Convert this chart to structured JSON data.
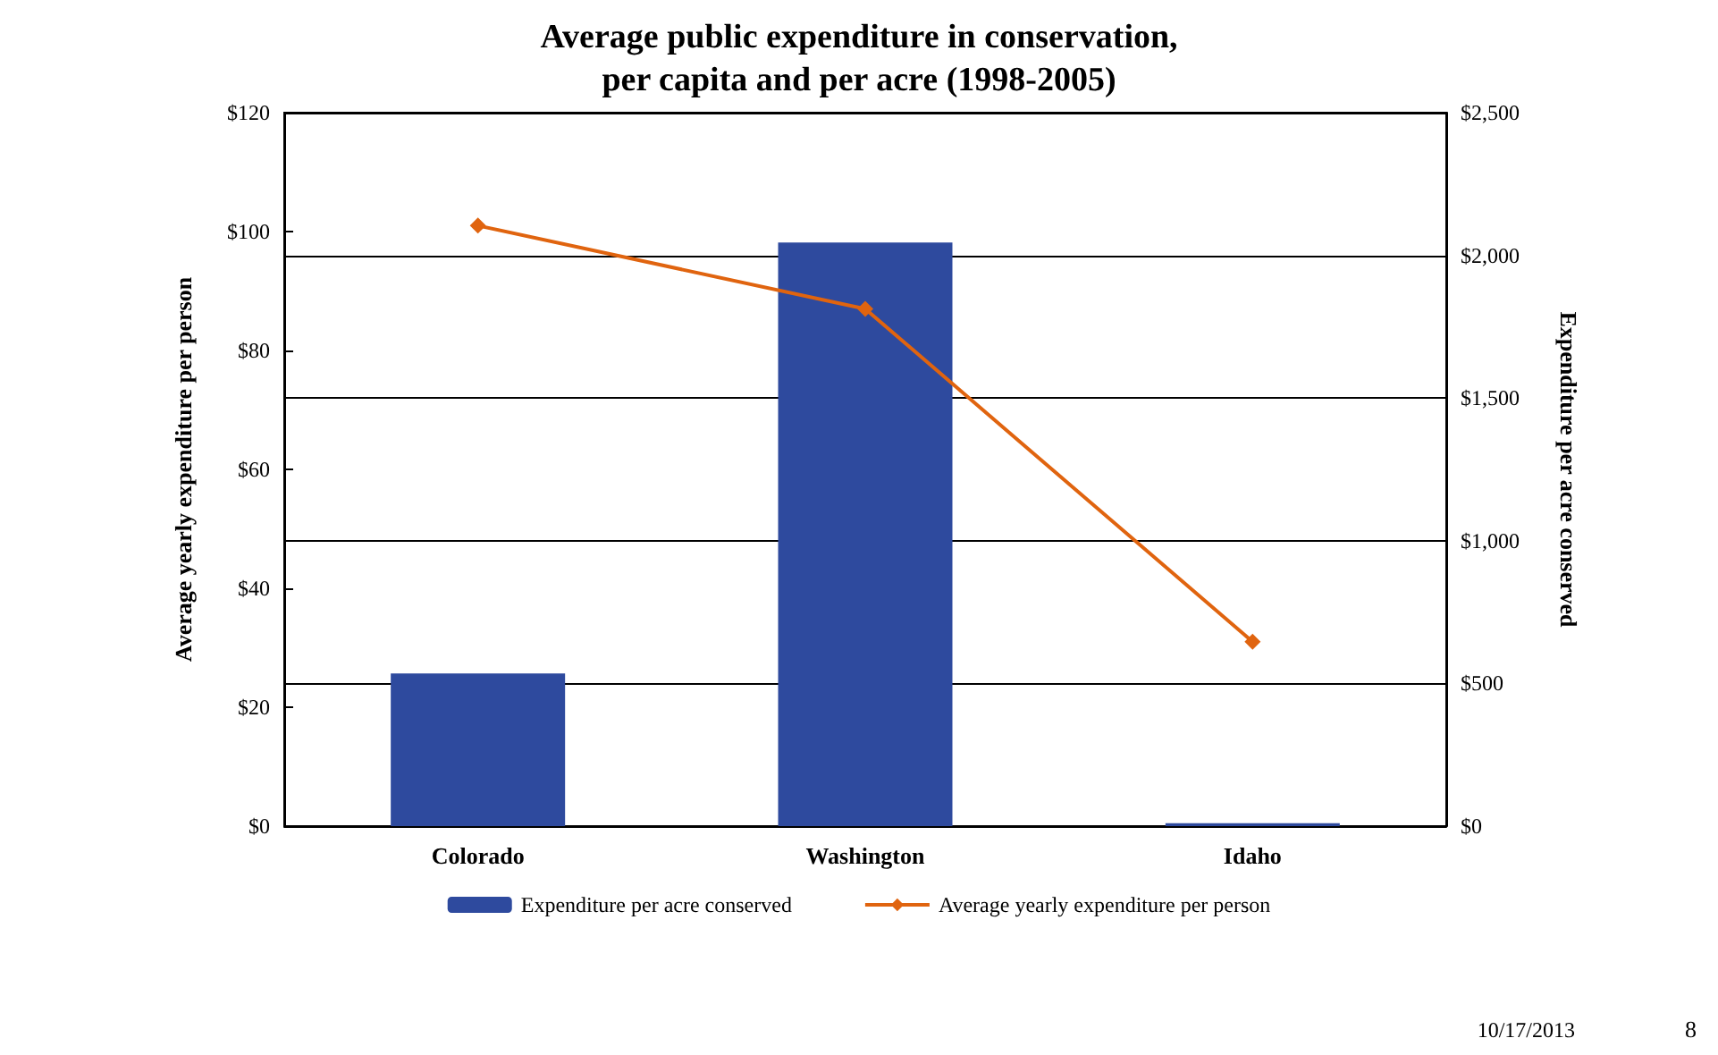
{
  "chart_data": {
    "type": "bar",
    "title": "Average public expenditure in conservation,\nper capita and per acre (1998-2005)",
    "ylabel": "Average yearly expenditure per person",
    "y2label": "Expenditure per acre conserved",
    "categories": [
      "Colorado",
      "Washington",
      "Idaho"
    ],
    "series": [
      {
        "name": "Expenditure per acre conserved",
        "axis": "y2",
        "color": "#2e4a9e",
        "values": [
          535,
          2045,
          10
        ]
      },
      {
        "name": "Average yearly expenditure per person",
        "type": "line",
        "axis": "y",
        "color": "#e0640f",
        "marker": "diamond",
        "values": [
          101,
          87,
          31
        ]
      }
    ],
    "ylim": [
      0,
      120
    ],
    "yticks": [
      {
        "value": 0,
        "label": "$0"
      },
      {
        "value": 20,
        "label": "$20"
      },
      {
        "value": 40,
        "label": "$40"
      },
      {
        "value": 60,
        "label": "$60"
      },
      {
        "value": 80,
        "label": "$80"
      },
      {
        "value": 100,
        "label": "$100"
      },
      {
        "value": 120,
        "label": "$120"
      }
    ],
    "y2lim": [
      0,
      2500
    ],
    "y2ticks": [
      {
        "value": 0,
        "label": "$0"
      },
      {
        "value": 500,
        "label": "$500"
      },
      {
        "value": 1000,
        "label": "$1,000"
      },
      {
        "value": 1500,
        "label": "$1,500"
      },
      {
        "value": 2000,
        "label": "$2,000"
      },
      {
        "value": 2500,
        "label": "$2,500"
      }
    ],
    "grid": true,
    "legend": "bottom",
    "annotations": [
      "10/17/2013",
      "8"
    ]
  }
}
